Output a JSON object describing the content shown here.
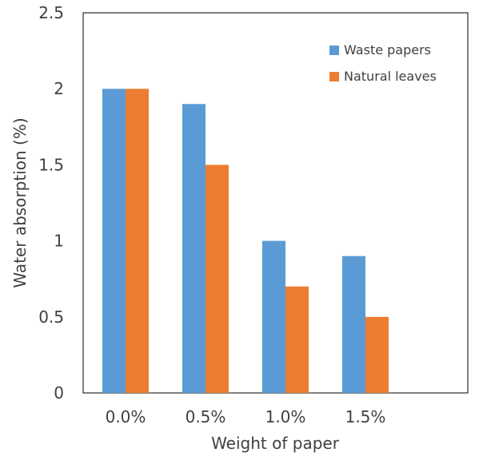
{
  "chart_data": {
    "type": "bar",
    "categories": [
      "0.0%",
      "0.5%",
      "1.0%",
      "1.5%"
    ],
    "series": [
      {
        "name": "Waste papers",
        "values": [
          2.0,
          1.9,
          1.0,
          0.9
        ],
        "color": "#5B9BD5"
      },
      {
        "name": "Natural leaves",
        "values": [
          2.0,
          1.5,
          0.7,
          0.5
        ],
        "color": "#ED7D31"
      }
    ],
    "xlabel": "Weight of paper",
    "ylabel": "Water absorption (%)",
    "ylim": [
      0,
      2.5
    ],
    "yticks": [
      "0",
      "0.5",
      "1",
      "1.5",
      "2",
      "2.5"
    ],
    "grid": false,
    "legend": "top-right"
  }
}
